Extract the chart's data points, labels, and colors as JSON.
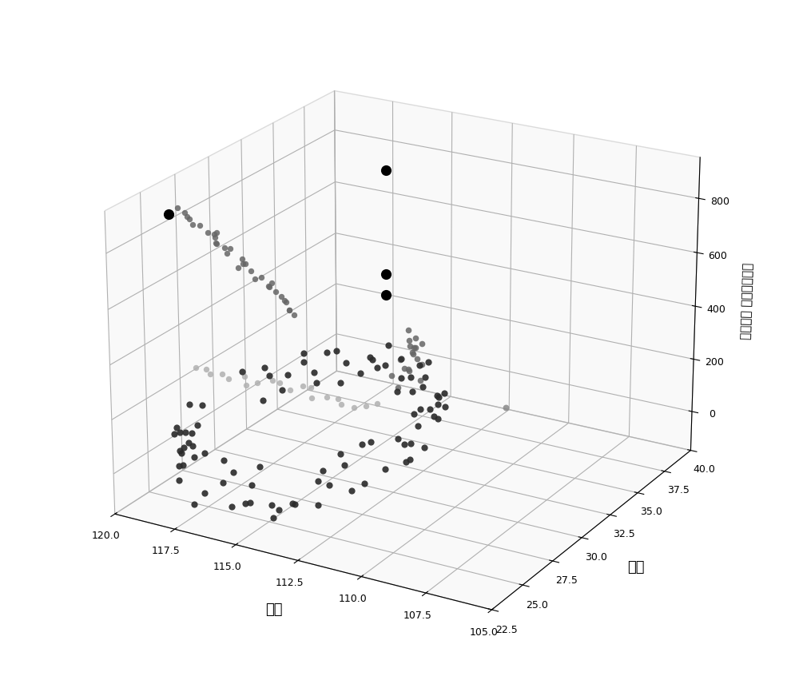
{
  "xlabel": "经度",
  "ylabel": "纬度",
  "zlabel": "（秒钟） 回旋频率共振",
  "xlim": [
    105.0,
    120.0
  ],
  "ylim": [
    22.5,
    40.0
  ],
  "zlim": [
    -150,
    950
  ],
  "xticks": [
    105.0,
    107.5,
    110.0,
    112.5,
    115.0,
    117.5,
    120.0
  ],
  "yticks": [
    22.5,
    25.0,
    27.5,
    30.0,
    32.5,
    35.0,
    37.5,
    40.0
  ],
  "zticks": [
    0,
    200,
    400,
    600,
    800
  ],
  "dark_cluster_color": "#2a2a2a",
  "medium_cluster_color": "#666666",
  "light_cluster_color": "#b0b0b0",
  "noise_color": "#000000",
  "lone_outlier_color": "#888888",
  "figsize": [
    10,
    8.61
  ],
  "dpi": 100,
  "elev": 22,
  "azim": -60
}
